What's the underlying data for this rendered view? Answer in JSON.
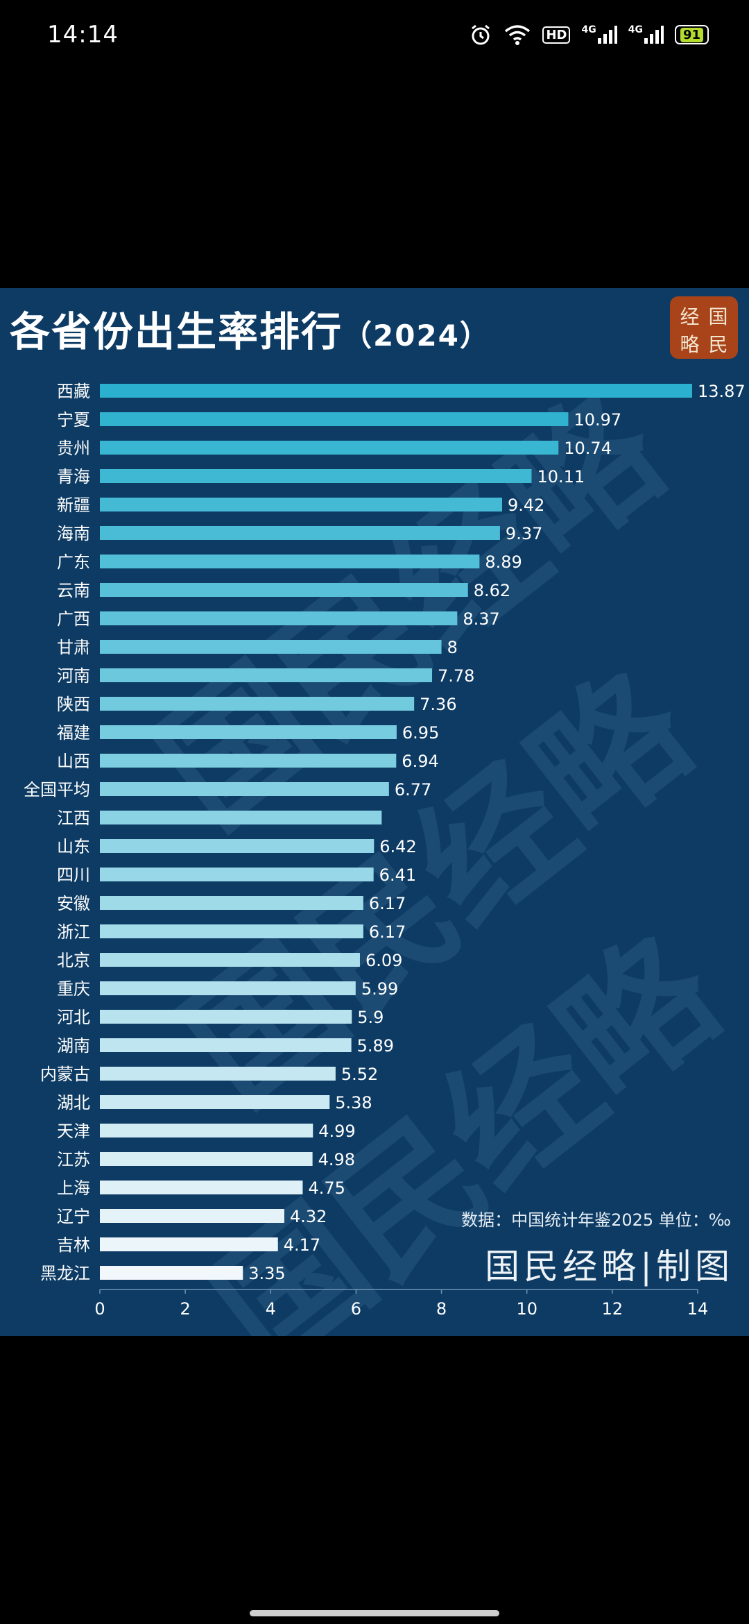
{
  "status_bar": {
    "time": "14:14",
    "net_label_1": "4G",
    "net_label_2": "4G",
    "hd_label": "HD",
    "battery": "91"
  },
  "chart": {
    "title": "各省份出生率排行",
    "year": "（2024）",
    "logo_chars": [
      "经",
      "国",
      "略",
      "民"
    ],
    "source_note": "数据：中国统计年鉴2025 单位：‰",
    "credit": "国民经略|制图",
    "watermark": [
      "国民经略",
      "国民经略",
      "国民经略"
    ],
    "bar_color_top": "#2bb1cf",
    "bar_color_bottom": "#f2f7fb"
  },
  "chart_data": {
    "type": "bar",
    "orientation": "horizontal",
    "title": "各省份出生率排行（2024）",
    "categories": [
      "西藏",
      "宁夏",
      "贵州",
      "青海",
      "新疆",
      "海南",
      "广东",
      "云南",
      "广西",
      "甘肃",
      "河南",
      "陕西",
      "福建",
      "山西",
      "全国平均",
      "江西",
      "山东",
      "四川",
      "安徽",
      "浙江",
      "北京",
      "重庆",
      "河北",
      "湖南",
      "内蒙古",
      "湖北",
      "天津",
      "江苏",
      "上海",
      "辽宁",
      "吉林",
      "黑龙江"
    ],
    "values": [
      13.87,
      10.97,
      10.74,
      10.11,
      9.42,
      9.37,
      8.89,
      8.62,
      8.37,
      8,
      7.78,
      7.36,
      6.95,
      6.94,
      6.77,
      6.6,
      6.42,
      6.41,
      6.17,
      6.17,
      6.09,
      5.99,
      5.9,
      5.89,
      5.52,
      5.38,
      4.99,
      4.98,
      4.75,
      4.32,
      4.17,
      3.35
    ],
    "value_labels": [
      "13.87",
      "10.97",
      "10.74",
      "10.11",
      "9.42",
      "9.37",
      "8.89",
      "8.62",
      "8.37",
      "8",
      "7.78",
      "7.36",
      "6.95",
      "6.94",
      "6.77",
      "",
      "6.42",
      "6.41",
      "6.17",
      "6.17",
      "6.09",
      "5.99",
      "5.9",
      "5.89",
      "5.52",
      "5.38",
      "4.99",
      "4.98",
      "4.75",
      "4.32",
      "4.17",
      "3.35"
    ],
    "xlim": [
      0,
      14
    ],
    "xticks": [
      "0",
      "2",
      "4",
      "6",
      "8",
      "10",
      "12",
      "14"
    ],
    "grid": false,
    "unit": "‰"
  }
}
